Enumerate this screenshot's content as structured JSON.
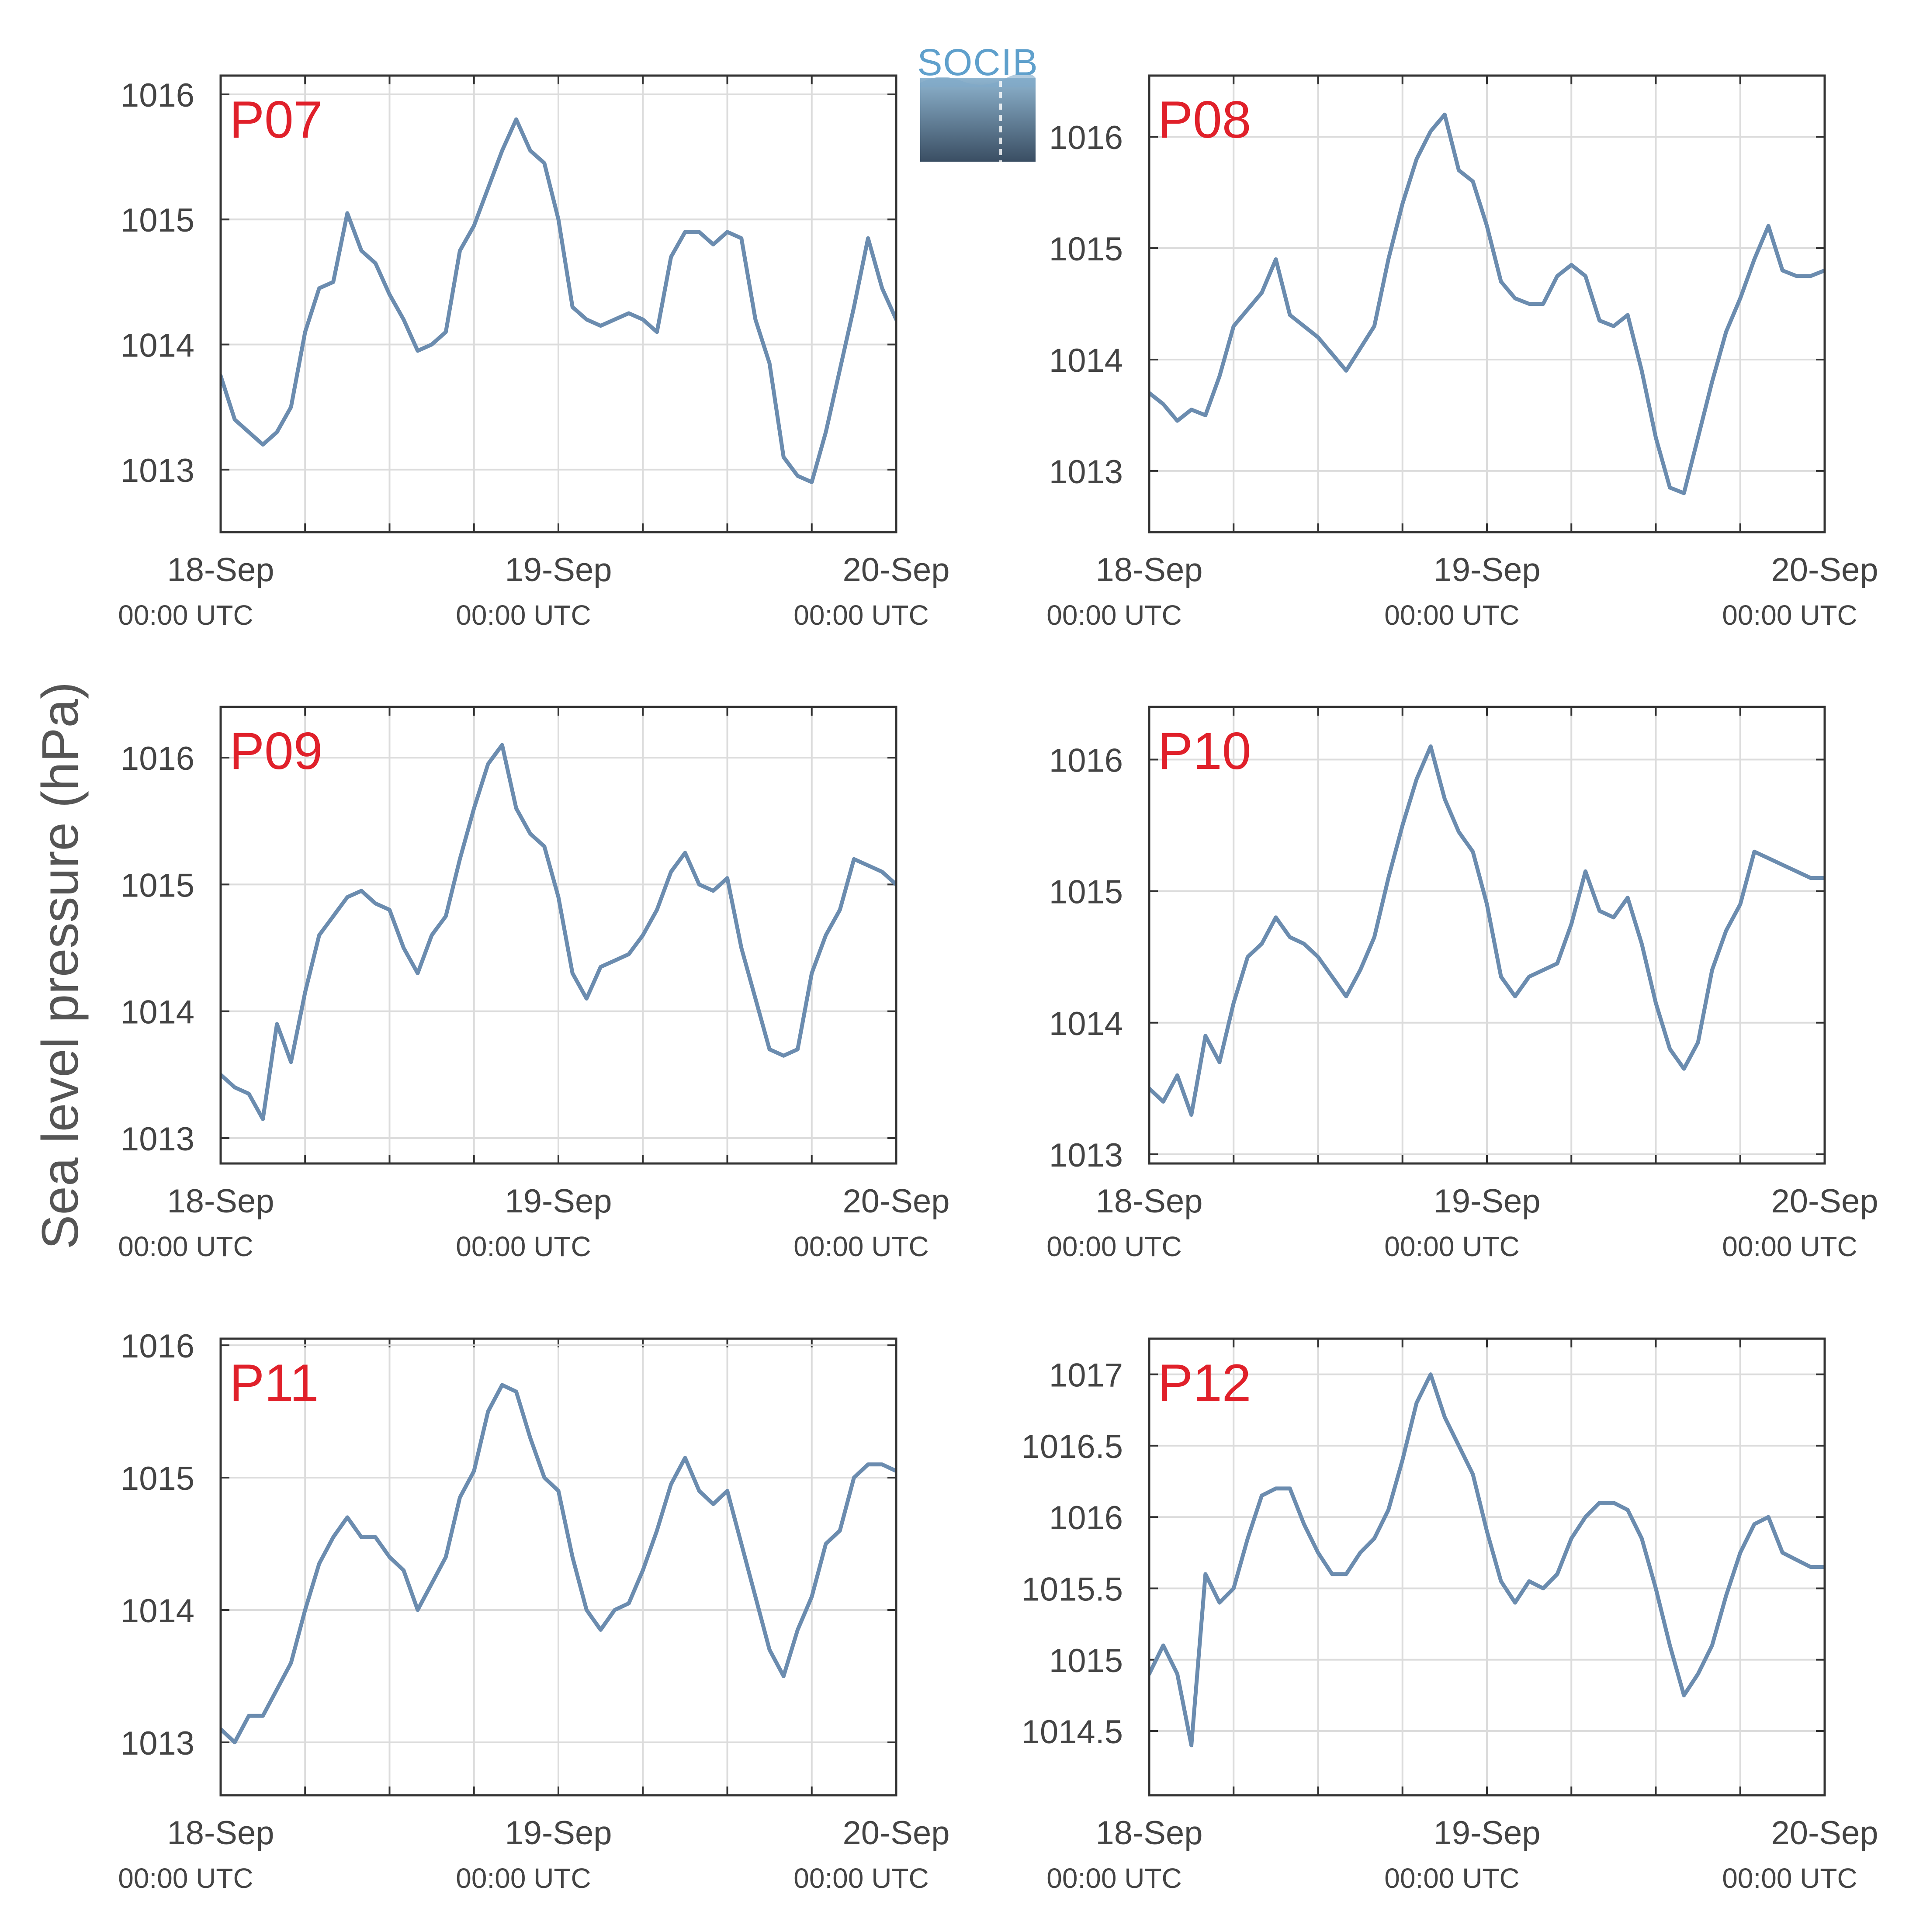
{
  "figure": {
    "ylabel": "Sea level pressure (hPa)",
    "logo_text": "SOCIB"
  },
  "chart_data": [
    {
      "type": "line",
      "label": "P07",
      "ylim": [
        1012.5,
        1016.15
      ],
      "yticks": [
        1013,
        1014,
        1015,
        1016
      ],
      "xlim_hours": [
        0,
        48
      ],
      "xticks": [
        {
          "date": "18-Sep",
          "time": "00:00 UTC"
        },
        {
          "date": "19-Sep",
          "time": "00:00 UTC"
        },
        {
          "date": "20-Sep",
          "time": "00:00 UTC"
        }
      ],
      "grid": true,
      "color": "#6b8caf",
      "series": [
        {
          "x": [
            0,
            1,
            2,
            3,
            4,
            5,
            6,
            7,
            8,
            9,
            10,
            11,
            12,
            13,
            14,
            15,
            16,
            17,
            18,
            19,
            20,
            21,
            22,
            23,
            24,
            25,
            26,
            27,
            28,
            29,
            30,
            31,
            32,
            33,
            34,
            35,
            36,
            37,
            38,
            39,
            40,
            41,
            42,
            43,
            44,
            45,
            46,
            47,
            48
          ],
          "y": [
            1013.75,
            1013.4,
            1013.3,
            1013.2,
            1013.3,
            1013.5,
            1014.1,
            1014.45,
            1014.5,
            1015.05,
            1014.75,
            1014.65,
            1014.4,
            1014.2,
            1013.95,
            1014.0,
            1014.1,
            1014.75,
            1014.95,
            1015.25,
            1015.55,
            1015.8,
            1015.55,
            1015.45,
            1015.0,
            1014.3,
            1014.2,
            1014.15,
            1014.2,
            1014.25,
            1014.2,
            1014.1,
            1014.7,
            1014.9,
            1014.9,
            1014.8,
            1014.9,
            1014.85,
            1014.2,
            1013.85,
            1013.1,
            1012.95,
            1012.9,
            1013.3,
            1013.8,
            1014.3,
            1014.85,
            1014.45,
            1014.2
          ]
        }
      ]
    },
    {
      "type": "line",
      "label": "P08",
      "ylim": [
        1012.45,
        1016.55
      ],
      "yticks": [
        1013,
        1014,
        1015,
        1016
      ],
      "xlim_hours": [
        0,
        48
      ],
      "xticks": [
        {
          "date": "18-Sep",
          "time": "00:00 UTC"
        },
        {
          "date": "19-Sep",
          "time": "00:00 UTC"
        },
        {
          "date": "20-Sep",
          "time": "00:00 UTC"
        }
      ],
      "grid": true,
      "color": "#6b8caf",
      "series": [
        {
          "x": [
            0,
            1,
            2,
            3,
            4,
            5,
            6,
            7,
            8,
            9,
            10,
            11,
            12,
            13,
            14,
            15,
            16,
            17,
            18,
            19,
            20,
            21,
            22,
            23,
            24,
            25,
            26,
            27,
            28,
            29,
            30,
            31,
            32,
            33,
            34,
            35,
            36,
            37,
            38,
            39,
            40,
            41,
            42,
            43,
            44,
            45,
            46,
            47,
            48
          ],
          "y": [
            1013.7,
            1013.6,
            1013.45,
            1013.55,
            1013.5,
            1013.85,
            1014.3,
            1014.45,
            1014.6,
            1014.9,
            1014.4,
            1014.3,
            1014.2,
            1014.05,
            1013.9,
            1014.1,
            1014.3,
            1014.9,
            1015.4,
            1015.8,
            1016.05,
            1016.2,
            1015.7,
            1015.6,
            1015.2,
            1014.7,
            1014.55,
            1014.5,
            1014.5,
            1014.75,
            1014.85,
            1014.75,
            1014.35,
            1014.3,
            1014.4,
            1013.9,
            1013.3,
            1012.85,
            1012.8,
            1013.3,
            1013.8,
            1014.25,
            1014.55,
            1014.9,
            1015.2,
            1014.8,
            1014.75,
            1014.75,
            1014.8
          ]
        }
      ]
    },
    {
      "type": "line",
      "label": "P09",
      "ylim": [
        1012.8,
        1016.4
      ],
      "yticks": [
        1013,
        1014,
        1015,
        1016
      ],
      "xlim_hours": [
        0,
        48
      ],
      "xticks": [
        {
          "date": "18-Sep",
          "time": "00:00 UTC"
        },
        {
          "date": "19-Sep",
          "time": "00:00 UTC"
        },
        {
          "date": "20-Sep",
          "time": "00:00 UTC"
        }
      ],
      "grid": true,
      "color": "#6b8caf",
      "series": [
        {
          "x": [
            0,
            1,
            2,
            3,
            4,
            5,
            6,
            7,
            8,
            9,
            10,
            11,
            12,
            13,
            14,
            15,
            16,
            17,
            18,
            19,
            20,
            21,
            22,
            23,
            24,
            25,
            26,
            27,
            28,
            29,
            30,
            31,
            32,
            33,
            34,
            35,
            36,
            37,
            38,
            39,
            40,
            41,
            42,
            43,
            44,
            45,
            46,
            47,
            48
          ],
          "y": [
            1013.5,
            1013.4,
            1013.35,
            1013.15,
            1013.9,
            1013.6,
            1014.15,
            1014.6,
            1014.75,
            1014.9,
            1014.95,
            1014.85,
            1014.8,
            1014.5,
            1014.3,
            1014.6,
            1014.75,
            1015.2,
            1015.6,
            1015.95,
            1016.1,
            1015.6,
            1015.4,
            1015.3,
            1014.9,
            1014.3,
            1014.1,
            1014.35,
            1014.4,
            1014.45,
            1014.6,
            1014.8,
            1015.1,
            1015.25,
            1015.0,
            1014.95,
            1015.05,
            1014.5,
            1014.1,
            1013.7,
            1013.65,
            1013.7,
            1014.3,
            1014.6,
            1014.8,
            1015.2,
            1015.15,
            1015.1,
            1015.0
          ]
        }
      ]
    },
    {
      "type": "line",
      "label": "P10",
      "ylim": [
        1012.93,
        1016.4
      ],
      "yticks": [
        1013,
        1014,
        1015,
        1016
      ],
      "xlim_hours": [
        0,
        48
      ],
      "xticks": [
        {
          "date": "18-Sep",
          "time": "00:00 UTC"
        },
        {
          "date": "19-Sep",
          "time": "00:00 UTC"
        },
        {
          "date": "20-Sep",
          "time": "00:00 UTC"
        }
      ],
      "grid": true,
      "color": "#6b8caf",
      "series": [
        {
          "x": [
            0,
            1,
            2,
            3,
            4,
            5,
            6,
            7,
            8,
            9,
            10,
            11,
            12,
            13,
            14,
            15,
            16,
            17,
            18,
            19,
            20,
            21,
            22,
            23,
            24,
            25,
            26,
            27,
            28,
            29,
            30,
            31,
            32,
            33,
            34,
            35,
            36,
            37,
            38,
            39,
            40,
            41,
            42,
            43,
            44,
            45,
            46,
            47,
            48
          ],
          "y": [
            1013.5,
            1013.4,
            1013.6,
            1013.3,
            1013.9,
            1013.7,
            1014.15,
            1014.5,
            1014.6,
            1014.8,
            1014.65,
            1014.6,
            1014.5,
            1014.35,
            1014.2,
            1014.4,
            1014.65,
            1015.1,
            1015.5,
            1015.85,
            1016.1,
            1015.7,
            1015.45,
            1015.3,
            1014.9,
            1014.35,
            1014.2,
            1014.35,
            1014.4,
            1014.45,
            1014.75,
            1015.15,
            1014.85,
            1014.8,
            1014.95,
            1014.6,
            1014.15,
            1013.8,
            1013.65,
            1013.85,
            1014.4,
            1014.7,
            1014.9,
            1015.3,
            1015.25,
            1015.2,
            1015.15,
            1015.1,
            1015.1
          ]
        }
      ]
    },
    {
      "type": "line",
      "label": "P11",
      "ylim": [
        1012.6,
        1016.05
      ],
      "yticks": [
        1013,
        1014,
        1015,
        1016
      ],
      "xlim_hours": [
        0,
        48
      ],
      "xticks": [
        {
          "date": "18-Sep",
          "time": "00:00 UTC"
        },
        {
          "date": "19-Sep",
          "time": "00:00 UTC"
        },
        {
          "date": "20-Sep",
          "time": "00:00 UTC"
        }
      ],
      "grid": true,
      "color": "#6b8caf",
      "series": [
        {
          "x": [
            0,
            1,
            2,
            3,
            4,
            5,
            6,
            7,
            8,
            9,
            10,
            11,
            12,
            13,
            14,
            15,
            16,
            17,
            18,
            19,
            20,
            21,
            22,
            23,
            24,
            25,
            26,
            27,
            28,
            29,
            30,
            31,
            32,
            33,
            34,
            35,
            36,
            37,
            38,
            39,
            40,
            41,
            42,
            43,
            44,
            45,
            46,
            47,
            48
          ],
          "y": [
            1013.1,
            1013.0,
            1013.2,
            1013.2,
            1013.4,
            1013.6,
            1014.0,
            1014.35,
            1014.55,
            1014.7,
            1014.55,
            1014.55,
            1014.4,
            1014.3,
            1014.0,
            1014.2,
            1014.4,
            1014.85,
            1015.05,
            1015.5,
            1015.7,
            1015.65,
            1015.3,
            1015.0,
            1014.9,
            1014.4,
            1014.0,
            1013.85,
            1014.0,
            1014.05,
            1014.3,
            1014.6,
            1014.95,
            1015.15,
            1014.9,
            1014.8,
            1014.9,
            1014.5,
            1014.1,
            1013.7,
            1013.5,
            1013.85,
            1014.1,
            1014.5,
            1014.6,
            1015.0,
            1015.1,
            1015.1,
            1015.05
          ]
        }
      ]
    },
    {
      "type": "line",
      "label": "P12",
      "ylim": [
        1014.05,
        1017.25
      ],
      "yticks": [
        1014.5,
        1015,
        1015.5,
        1016,
        1016.5,
        1017
      ],
      "xlim_hours": [
        0,
        48
      ],
      "xticks": [
        {
          "date": "18-Sep",
          "time": "00:00 UTC"
        },
        {
          "date": "19-Sep",
          "time": "00:00 UTC"
        },
        {
          "date": "20-Sep",
          "time": "00:00 UTC"
        }
      ],
      "grid": true,
      "color": "#6b8caf",
      "series": [
        {
          "x": [
            0,
            1,
            2,
            3,
            4,
            5,
            6,
            7,
            8,
            9,
            10,
            11,
            12,
            13,
            14,
            15,
            16,
            17,
            18,
            19,
            20,
            21,
            22,
            23,
            24,
            25,
            26,
            27,
            28,
            29,
            30,
            31,
            32,
            33,
            34,
            35,
            36,
            37,
            38,
            39,
            40,
            41,
            42,
            43,
            44,
            45,
            46,
            47,
            48
          ],
          "y": [
            1014.9,
            1015.1,
            1014.9,
            1014.4,
            1015.6,
            1015.4,
            1015.5,
            1015.85,
            1016.15,
            1016.2,
            1016.2,
            1015.95,
            1015.75,
            1015.6,
            1015.6,
            1015.75,
            1015.85,
            1016.05,
            1016.4,
            1016.8,
            1017.0,
            1016.7,
            1016.5,
            1016.3,
            1015.9,
            1015.55,
            1015.4,
            1015.55,
            1015.5,
            1015.6,
            1015.85,
            1016.0,
            1016.1,
            1016.1,
            1016.05,
            1015.85,
            1015.5,
            1015.1,
            1014.75,
            1014.9,
            1015.1,
            1015.45,
            1015.75,
            1015.95,
            1016.0,
            1015.75,
            1015.7,
            1015.65,
            1015.65
          ]
        }
      ]
    }
  ]
}
